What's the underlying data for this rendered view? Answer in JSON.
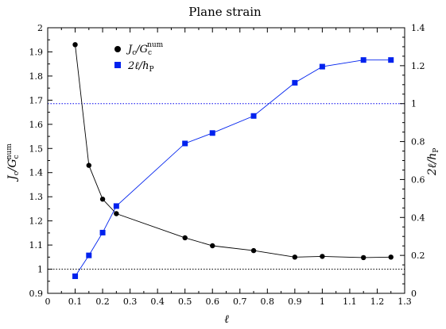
{
  "chart_data": {
    "type": "line",
    "title": "Plane strain",
    "xlabel": "ℓ",
    "ylabel_left": {
      "main": "J",
      "sub": "c",
      "mid": "/G",
      "sub2": "c",
      "sup2": "num"
    },
    "ylabel_right": {
      "main": "2ℓ/h",
      "sub": "P"
    },
    "xlim": [
      0,
      1.3
    ],
    "ylim_left": [
      0.9,
      2.0
    ],
    "ylim_right": [
      0,
      1.4
    ],
    "x_ticks": [
      "0",
      "0.1",
      "0.2",
      "0.3",
      "0.4",
      "0.5",
      "0.6",
      "0.7",
      "0.8",
      "0.9",
      "1",
      "1.1",
      "1.2",
      "1.3"
    ],
    "y_left_ticks": [
      "0.9",
      "1",
      "1.1",
      "1.2",
      "1.3",
      "1.4",
      "1.5",
      "1.6",
      "1.7",
      "1.8",
      "1.9",
      "2"
    ],
    "y_right_ticks": [
      "0",
      "0.2",
      "0.4",
      "0.6",
      "0.8",
      "1",
      "1.2",
      "1.4"
    ],
    "grid": false,
    "legend_position": "top-left",
    "reference_lines": [
      {
        "axis": "left",
        "y": 1.0,
        "color": "#000000",
        "style": "dotted"
      },
      {
        "axis": "right",
        "y": 1.0,
        "color": "#0000ee",
        "style": "dotted"
      }
    ],
    "series": [
      {
        "legend": {
          "main": "J",
          "sub": "c",
          "mid": "/G",
          "sub2": "c",
          "sup2": "num"
        },
        "axis": "left",
        "marker": "circle",
        "color": "#000000",
        "x": [
          0.1,
          0.15,
          0.2,
          0.25,
          0.5,
          0.6,
          0.75,
          0.9,
          1.0,
          1.15,
          1.25
        ],
        "y": [
          1.93,
          1.43,
          1.29,
          1.23,
          1.13,
          1.097,
          1.077,
          1.05,
          1.053,
          1.048,
          1.05
        ]
      },
      {
        "legend": {
          "main": "2ℓ/h",
          "sub": "P"
        },
        "axis": "right",
        "marker": "square",
        "color": "#0022ee",
        "x": [
          0.1,
          0.15,
          0.2,
          0.25,
          0.5,
          0.6,
          0.75,
          0.9,
          1.0,
          1.15,
          1.25
        ],
        "y": [
          0.09,
          0.2,
          0.32,
          0.46,
          0.79,
          0.845,
          0.935,
          1.11,
          1.195,
          1.23,
          1.23
        ]
      }
    ]
  }
}
